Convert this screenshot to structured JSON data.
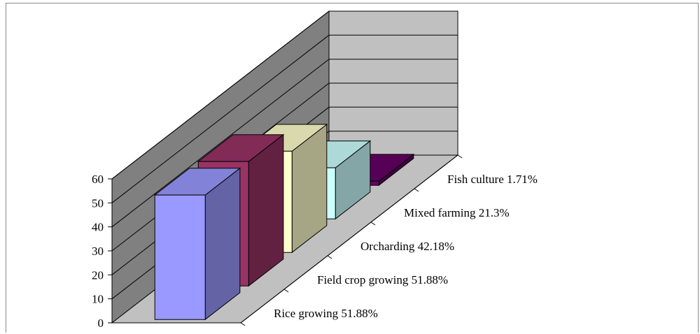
{
  "chart_data": {
    "type": "bar",
    "three_d": true,
    "title": "",
    "xlabel": "",
    "ylabel": "",
    "ylim": [
      0,
      60
    ],
    "yticks": [
      0,
      10,
      20,
      30,
      40,
      50,
      60
    ],
    "grid": true,
    "legend": "none",
    "categories": [
      "Rice growing 51.88%",
      "Field crop growing 51.88%",
      "Orcharding 42.18%",
      "Mixed farming 21.3%",
      "Fish culture 1.71%"
    ],
    "values": [
      51.88,
      51.88,
      42.18,
      21.3,
      1.71
    ],
    "colors": [
      "#9999ff",
      "#993366",
      "#ffffcc",
      "#ccffff",
      "#660066"
    ],
    "wall_color": "#808080",
    "back_wall_color": "#c0c0c0",
    "floor_color": "#c0c0c0"
  }
}
